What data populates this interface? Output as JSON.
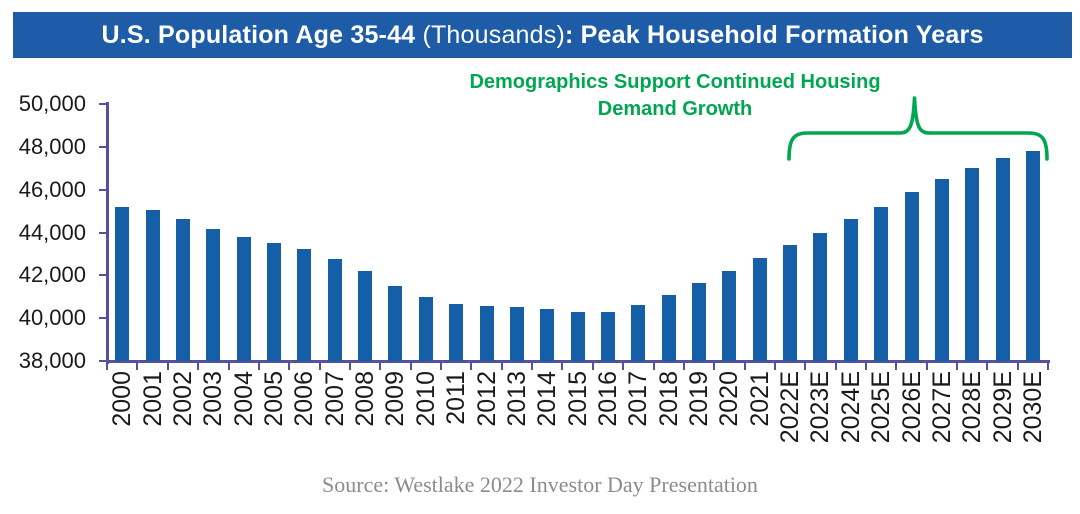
{
  "header": {
    "title_bold_1": "U.S. Population Age 35-44 ",
    "title_regular": "(Thousands)",
    "title_bold_2": ": Peak Household Formation Years",
    "bg_color": "#1E5CA8",
    "text_color": "#FFFFFF"
  },
  "annotation": {
    "line1": "Demographics Support Continued Housing",
    "line2": "Demand Growth",
    "color": "#00A651",
    "bracket_span": "2022E-2030E"
  },
  "chart_data": {
    "type": "bar",
    "title": "U.S. Population Age 35-44 (Thousands): Peak Household Formation Years",
    "categories": [
      "2000",
      "2001",
      "2002",
      "2003",
      "2004",
      "2005",
      "2006",
      "2007",
      "2008",
      "2009",
      "2010",
      "2011",
      "2012",
      "2013",
      "2014",
      "2015",
      "2016",
      "2017",
      "2018",
      "2019",
      "2020",
      "2021",
      "2022E",
      "2023E",
      "2024E",
      "2025E",
      "2026E",
      "2027E",
      "2028E",
      "2029E",
      "2030E"
    ],
    "values": [
      45200,
      45050,
      44650,
      44150,
      43800,
      43500,
      43250,
      42750,
      42200,
      41500,
      41000,
      40650,
      40550,
      40500,
      40450,
      40300,
      40300,
      40600,
      41100,
      41650,
      42200,
      42800,
      43400,
      44000,
      44650,
      45200,
      45900,
      46500,
      47000,
      47500,
      47800
    ],
    "xlabel": "",
    "ylabel": "",
    "ylim": [
      38000,
      50000
    ],
    "ytick_values": [
      50000,
      48000,
      46000,
      44000,
      42000,
      40000,
      38000
    ],
    "ytick_labels": [
      "50,000",
      "48,000",
      "46,000",
      "44,000",
      "42,000",
      "40,000",
      "38,000"
    ],
    "grid": false,
    "legend": "none",
    "bar_color": "#155EA8",
    "axis_color": "#56519E"
  },
  "footer": {
    "source": "Source: Westlake 2022 Investor Day Presentation",
    "color": "#8C8C8C"
  }
}
